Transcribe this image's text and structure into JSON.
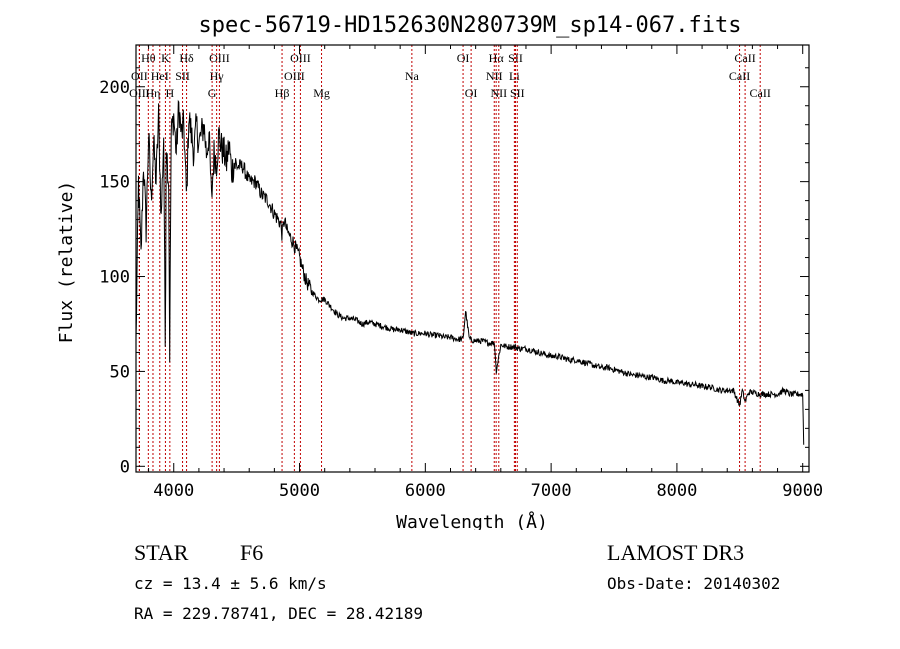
{
  "chart_data": {
    "type": "line",
    "title": "spec-56719-HD152630N280739M_sp14-067.fits",
    "xlabel": "Wavelength (Å)",
    "ylabel": "Flux (relative)",
    "xlim": [
      3700,
      9050
    ],
    "ylim": [
      -3,
      222
    ],
    "xticks": [
      {
        "value": 4000,
        "label": "4000"
      },
      {
        "value": 5000,
        "label": "5000"
      },
      {
        "value": 6000,
        "label": "6000"
      },
      {
        "value": 7000,
        "label": "7000"
      },
      {
        "value": 8000,
        "label": "8000"
      },
      {
        "value": 9000,
        "label": "9000"
      }
    ],
    "yticks": [
      {
        "value": 0,
        "label": "0"
      },
      {
        "value": 50,
        "label": "50"
      },
      {
        "value": 100,
        "label": "100"
      },
      {
        "value": 150,
        "label": "150"
      },
      {
        "value": 200,
        "label": "200"
      }
    ],
    "spectrum": {
      "wavelength": [
        3700,
        3720,
        3740,
        3760,
        3780,
        3800,
        3820,
        3840,
        3860,
        3880,
        3900,
        3920,
        3933,
        3940,
        3960,
        3968,
        3980,
        4000,
        4020,
        4040,
        4060,
        4080,
        4102,
        4120,
        4140,
        4160,
        4180,
        4200,
        4220,
        4240,
        4260,
        4280,
        4300,
        4320,
        4340,
        4360,
        4380,
        4400,
        4420,
        4440,
        4460,
        4480,
        4500,
        4550,
        4600,
        4650,
        4700,
        4750,
        4800,
        4850,
        4861,
        4880,
        4900,
        4950,
        5000,
        5020,
        5050,
        5100,
        5150,
        5200,
        5250,
        5300,
        5350,
        5400,
        5450,
        5500,
        5550,
        5600,
        5650,
        5700,
        5750,
        5800,
        5850,
        5900,
        5950,
        6000,
        6050,
        6100,
        6150,
        6200,
        6250,
        6300,
        6320,
        6350,
        6400,
        6450,
        6500,
        6550,
        6563,
        6600,
        6650,
        6700,
        6750,
        6800,
        6850,
        6900,
        6950,
        7000,
        7050,
        7100,
        7150,
        7200,
        7250,
        7300,
        7350,
        7400,
        7450,
        7500,
        7550,
        7600,
        7650,
        7700,
        7750,
        7800,
        7850,
        7900,
        7950,
        8000,
        8050,
        8100,
        8150,
        8200,
        8250,
        8300,
        8350,
        8400,
        8450,
        8498,
        8520,
        8542,
        8570,
        8600,
        8662,
        8700,
        8750,
        8800,
        8850,
        8900,
        8950,
        8990,
        9000,
        9010
      ],
      "flux": [
        65,
        150,
        110,
        160,
        125,
        175,
        140,
        170,
        150,
        185,
        130,
        175,
        55,
        170,
        150,
        60,
        175,
        185,
        165,
        190,
        175,
        180,
        140,
        185,
        175,
        165,
        180,
        170,
        175,
        180,
        165,
        175,
        140,
        165,
        160,
        175,
        168,
        165,
        160,
        170,
        155,
        160,
        158,
        158,
        150,
        150,
        143,
        140,
        133,
        128,
        122,
        130,
        124,
        118,
        110,
        105,
        98,
        92,
        88,
        88,
        84,
        80,
        78,
        78,
        77,
        75,
        76,
        75,
        74,
        73,
        72,
        72,
        71,
        70,
        70,
        70,
        69,
        69,
        68,
        68,
        67,
        67,
        82,
        67,
        66,
        66,
        65,
        65,
        50,
        64,
        63,
        63,
        62,
        62,
        61,
        60,
        59,
        58,
        58,
        57,
        56,
        56,
        55,
        54,
        53,
        52,
        52,
        51,
        50,
        49,
        48,
        48,
        47,
        47,
        46,
        45,
        45,
        44,
        44,
        43,
        43,
        42,
        42,
        41,
        40,
        40,
        40,
        32,
        40,
        34,
        39,
        39,
        38,
        38,
        38,
        38,
        40,
        38,
        38,
        38,
        38,
        5
      ]
    },
    "lines": [
      {
        "name": "Hθ",
        "wavelength": 3798,
        "row": 1,
        "pos": "top"
      },
      {
        "name": "OII",
        "wavelength": 3727,
        "row": 2,
        "pos": "top"
      },
      {
        "name": "OIII",
        "wavelength": 3727,
        "row": 3,
        "pos": "top"
      },
      {
        "name": "Hη",
        "wavelength": 3835,
        "row": 3,
        "pos": "top"
      },
      {
        "name": "HeI",
        "wavelength": 3889,
        "row": 2,
        "pos": "top"
      },
      {
        "name": "K",
        "wavelength": 3934,
        "row": 1,
        "pos": "top"
      },
      {
        "name": "SII",
        "wavelength": 4070,
        "row": 2,
        "pos": "top"
      },
      {
        "name": "H",
        "wavelength": 3969,
        "row": 3,
        "pos": "top"
      },
      {
        "name": "Hδ",
        "wavelength": 4102,
        "row": 1,
        "pos": "top"
      },
      {
        "name": "OIII",
        "wavelength": 4363,
        "row": 1,
        "pos": "top"
      },
      {
        "name": "Hγ",
        "wavelength": 4341,
        "row": 2,
        "pos": "top"
      },
      {
        "name": "G",
        "wavelength": 4305,
        "row": 3,
        "pos": "top"
      },
      {
        "name": "Hβ",
        "wavelength": 4861,
        "row": 3,
        "pos": "top"
      },
      {
        "name": "OIII",
        "wavelength": 5007,
        "row": 1,
        "pos": "top"
      },
      {
        "name": "OIII",
        "wavelength": 4959,
        "row": 2,
        "pos": "top"
      },
      {
        "name": "Mg",
        "wavelength": 5175,
        "row": 3,
        "pos": "top"
      },
      {
        "name": "Na",
        "wavelength": 5893,
        "row": 2,
        "pos": "top"
      },
      {
        "name": "OI",
        "wavelength": 6300,
        "row": 1,
        "pos": "top"
      },
      {
        "name": "OI",
        "wavelength": 6364,
        "row": 3,
        "pos": "top"
      },
      {
        "name": "Hα",
        "wavelength": 6563,
        "row": 1,
        "pos": "top"
      },
      {
        "name": "SII",
        "wavelength": 6717,
        "row": 1,
        "pos": "top"
      },
      {
        "name": "NII",
        "wavelength": 6548,
        "row": 2,
        "pos": "top"
      },
      {
        "name": "Li",
        "wavelength": 6708,
        "row": 2,
        "pos": "top"
      },
      {
        "name": "NII",
        "wavelength": 6584,
        "row": 3,
        "pos": "top"
      },
      {
        "name": "SII",
        "wavelength": 6731,
        "row": 3,
        "pos": "top"
      },
      {
        "name": "CaII",
        "wavelength": 8542,
        "row": 1,
        "pos": "top"
      },
      {
        "name": "CaII",
        "wavelength": 8498,
        "row": 2,
        "pos": "top"
      },
      {
        "name": "CaII",
        "wavelength": 8662,
        "row": 3,
        "pos": "top"
      }
    ]
  },
  "info": {
    "object_class": "STAR",
    "subclass": "F6",
    "survey": "LAMOST DR3",
    "redshift": "cz = 13.4 ± 5.6 km/s",
    "obs_date": "Obs-Date: 20140302",
    "coords": "RA = 229.78741, DEC =  28.42189"
  },
  "colors": {
    "line_marker": "#c00000",
    "spectrum": "#000000"
  }
}
